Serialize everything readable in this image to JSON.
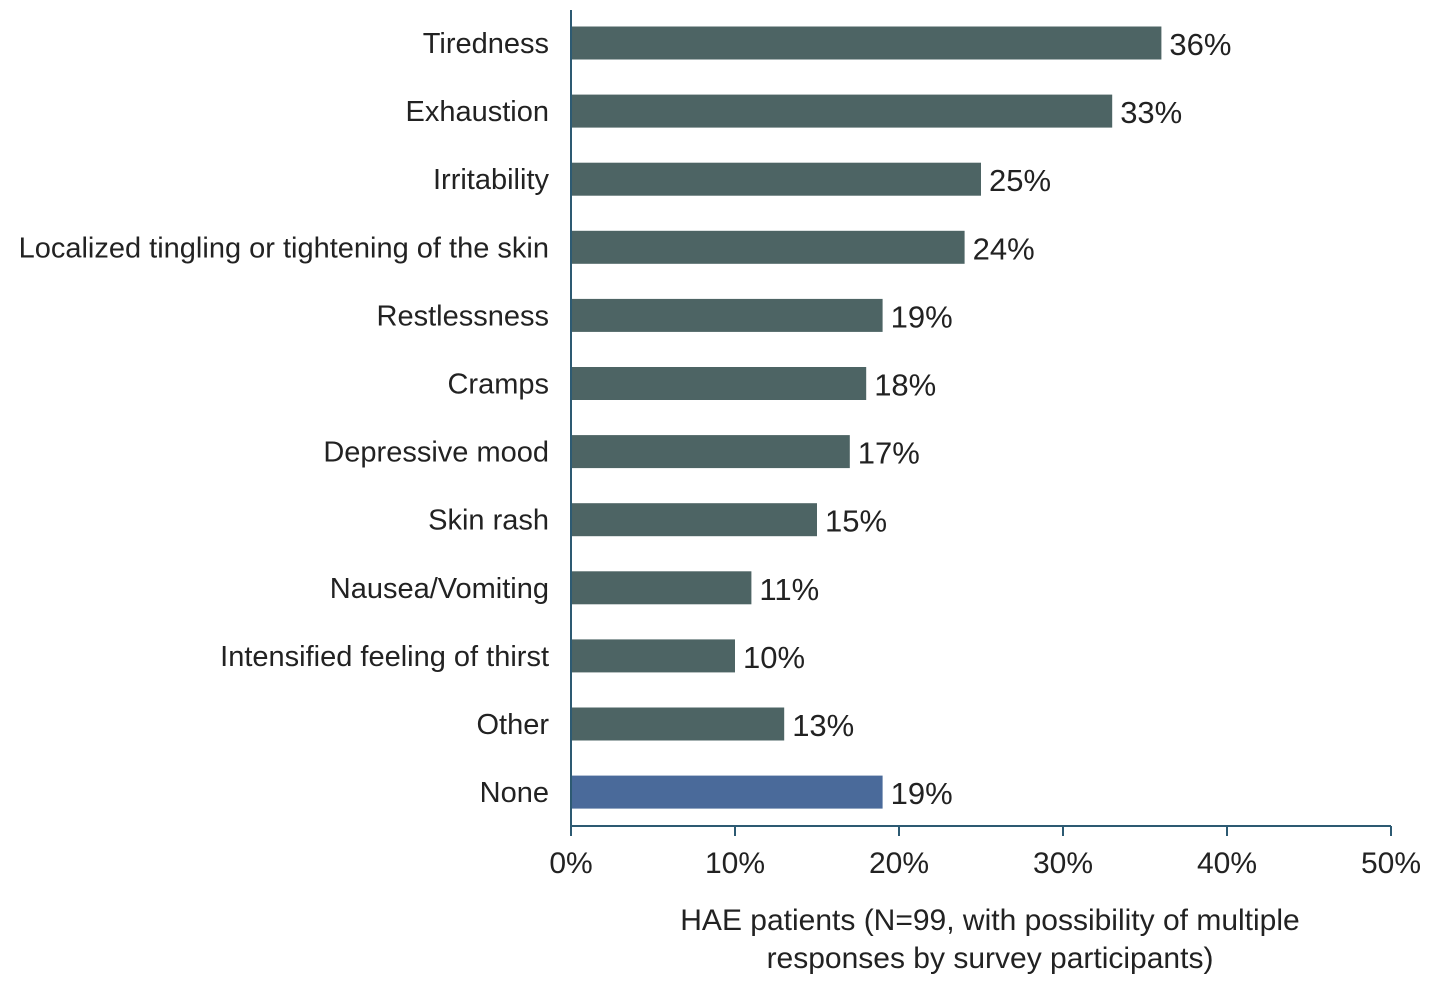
{
  "chart_data": {
    "type": "bar",
    "orientation": "horizontal",
    "title": "",
    "xlabel": "HAE patients (N=99, with possibility of multiple responses by survey participants)",
    "xlabel_lines": [
      "HAE patients (N=99, with possibility of multiple",
      "responses by survey participants)"
    ],
    "ylabel": "",
    "xlim": [
      0,
      50
    ],
    "x_ticks": [
      0,
      10,
      20,
      30,
      40,
      50
    ],
    "x_tick_labels": [
      "0%",
      "10%",
      "20%",
      "30%",
      "40%",
      "50%"
    ],
    "grid": false,
    "legend": "none",
    "categories": [
      "Tiredness",
      "Exhaustion",
      "Irritability",
      "Localized tingling or tightening of the skin",
      "Restlessness",
      "Cramps",
      "Depressive mood",
      "Skin rash",
      "Nausea/Vomiting",
      "Intensified feeling of thirst",
      "Other",
      "None"
    ],
    "values": [
      36,
      33,
      25,
      24,
      19,
      18,
      17,
      15,
      11,
      10,
      13,
      19
    ],
    "value_labels": [
      "36%",
      "33%",
      "25%",
      "24%",
      "19%",
      "18%",
      "17%",
      "15%",
      "11%",
      "10%",
      "13%",
      "19%"
    ],
    "colors": {
      "default_bar": "#4d6464",
      "highlight_bar": "#4a6a9a",
      "highlight_category": "None",
      "axis": "#2d5a72"
    }
  }
}
